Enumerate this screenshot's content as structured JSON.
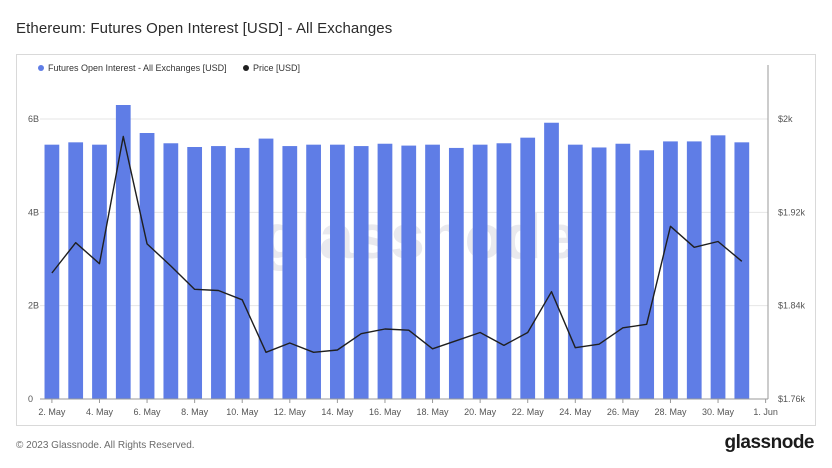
{
  "header": {
    "title": "Ethereum: Futures Open Interest [USD] - All Exchanges"
  },
  "footer": {
    "copyright": "© 2023 Glassnode. All Rights Reserved.",
    "logo": "glassnode"
  },
  "watermark": "glassnode",
  "colors": {
    "bar": "#5f7de6",
    "line": "#1f1f1f",
    "grid": "#e6e6e6",
    "axis": "#9a9a9a"
  },
  "chart_data": {
    "type": "bar",
    "title": "Ethereum: Futures Open Interest [USD] - All Exchanges",
    "x_tick_labels": [
      "2. May",
      "4. May",
      "6. May",
      "8. May",
      "10. May",
      "12. May",
      "14. May",
      "16. May",
      "18. May",
      "20. May",
      "22. May",
      "24. May",
      "26. May",
      "28. May",
      "30. May",
      "1. Jun"
    ],
    "categories": [
      "2 May",
      "3 May",
      "4 May",
      "5 May",
      "6 May",
      "7 May",
      "8 May",
      "9 May",
      "10 May",
      "11 May",
      "12 May",
      "13 May",
      "14 May",
      "15 May",
      "16 May",
      "17 May",
      "18 May",
      "19 May",
      "20 May",
      "21 May",
      "22 May",
      "23 May",
      "24 May",
      "25 May",
      "26 May",
      "27 May",
      "28 May",
      "29 May",
      "30 May",
      "31 May"
    ],
    "series": [
      {
        "name": "Futures Open Interest - All Exchanges [USD]",
        "axis": "left",
        "type": "bar",
        "values": [
          5.45,
          5.5,
          5.45,
          6.3,
          5.7,
          5.48,
          5.4,
          5.42,
          5.38,
          5.58,
          5.42,
          5.45,
          5.45,
          5.42,
          5.47,
          5.43,
          5.45,
          5.38,
          5.45,
          5.48,
          5.6,
          5.92,
          5.45,
          5.39,
          5.47,
          5.33,
          5.52,
          5.52,
          5.65,
          5.5
        ]
      },
      {
        "name": "Price [USD]",
        "axis": "right",
        "type": "line",
        "values": [
          1868,
          1894,
          1876,
          1985,
          1893,
          1874,
          1854,
          1853,
          1845,
          1800,
          1808,
          1800,
          1802,
          1816,
          1820,
          1819,
          1803,
          1810,
          1817,
          1806,
          1817,
          1852,
          1804,
          1807,
          1821,
          1824,
          1908,
          1890,
          1895,
          1878
        ]
      }
    ],
    "y_left": {
      "ylim": [
        0,
        6
      ],
      "ticks": [
        0,
        2,
        4,
        6
      ],
      "tick_labels": [
        "0",
        "2B",
        "4B",
        "6B"
      ]
    },
    "y_right": {
      "ylim": [
        1760,
        2000
      ],
      "ticks": [
        1760,
        1840,
        1920,
        2000
      ],
      "tick_labels": [
        "$1.76k",
        "$1.84k",
        "$1.92k",
        "$2k"
      ]
    },
    "grid": true,
    "legend": "top-left"
  }
}
